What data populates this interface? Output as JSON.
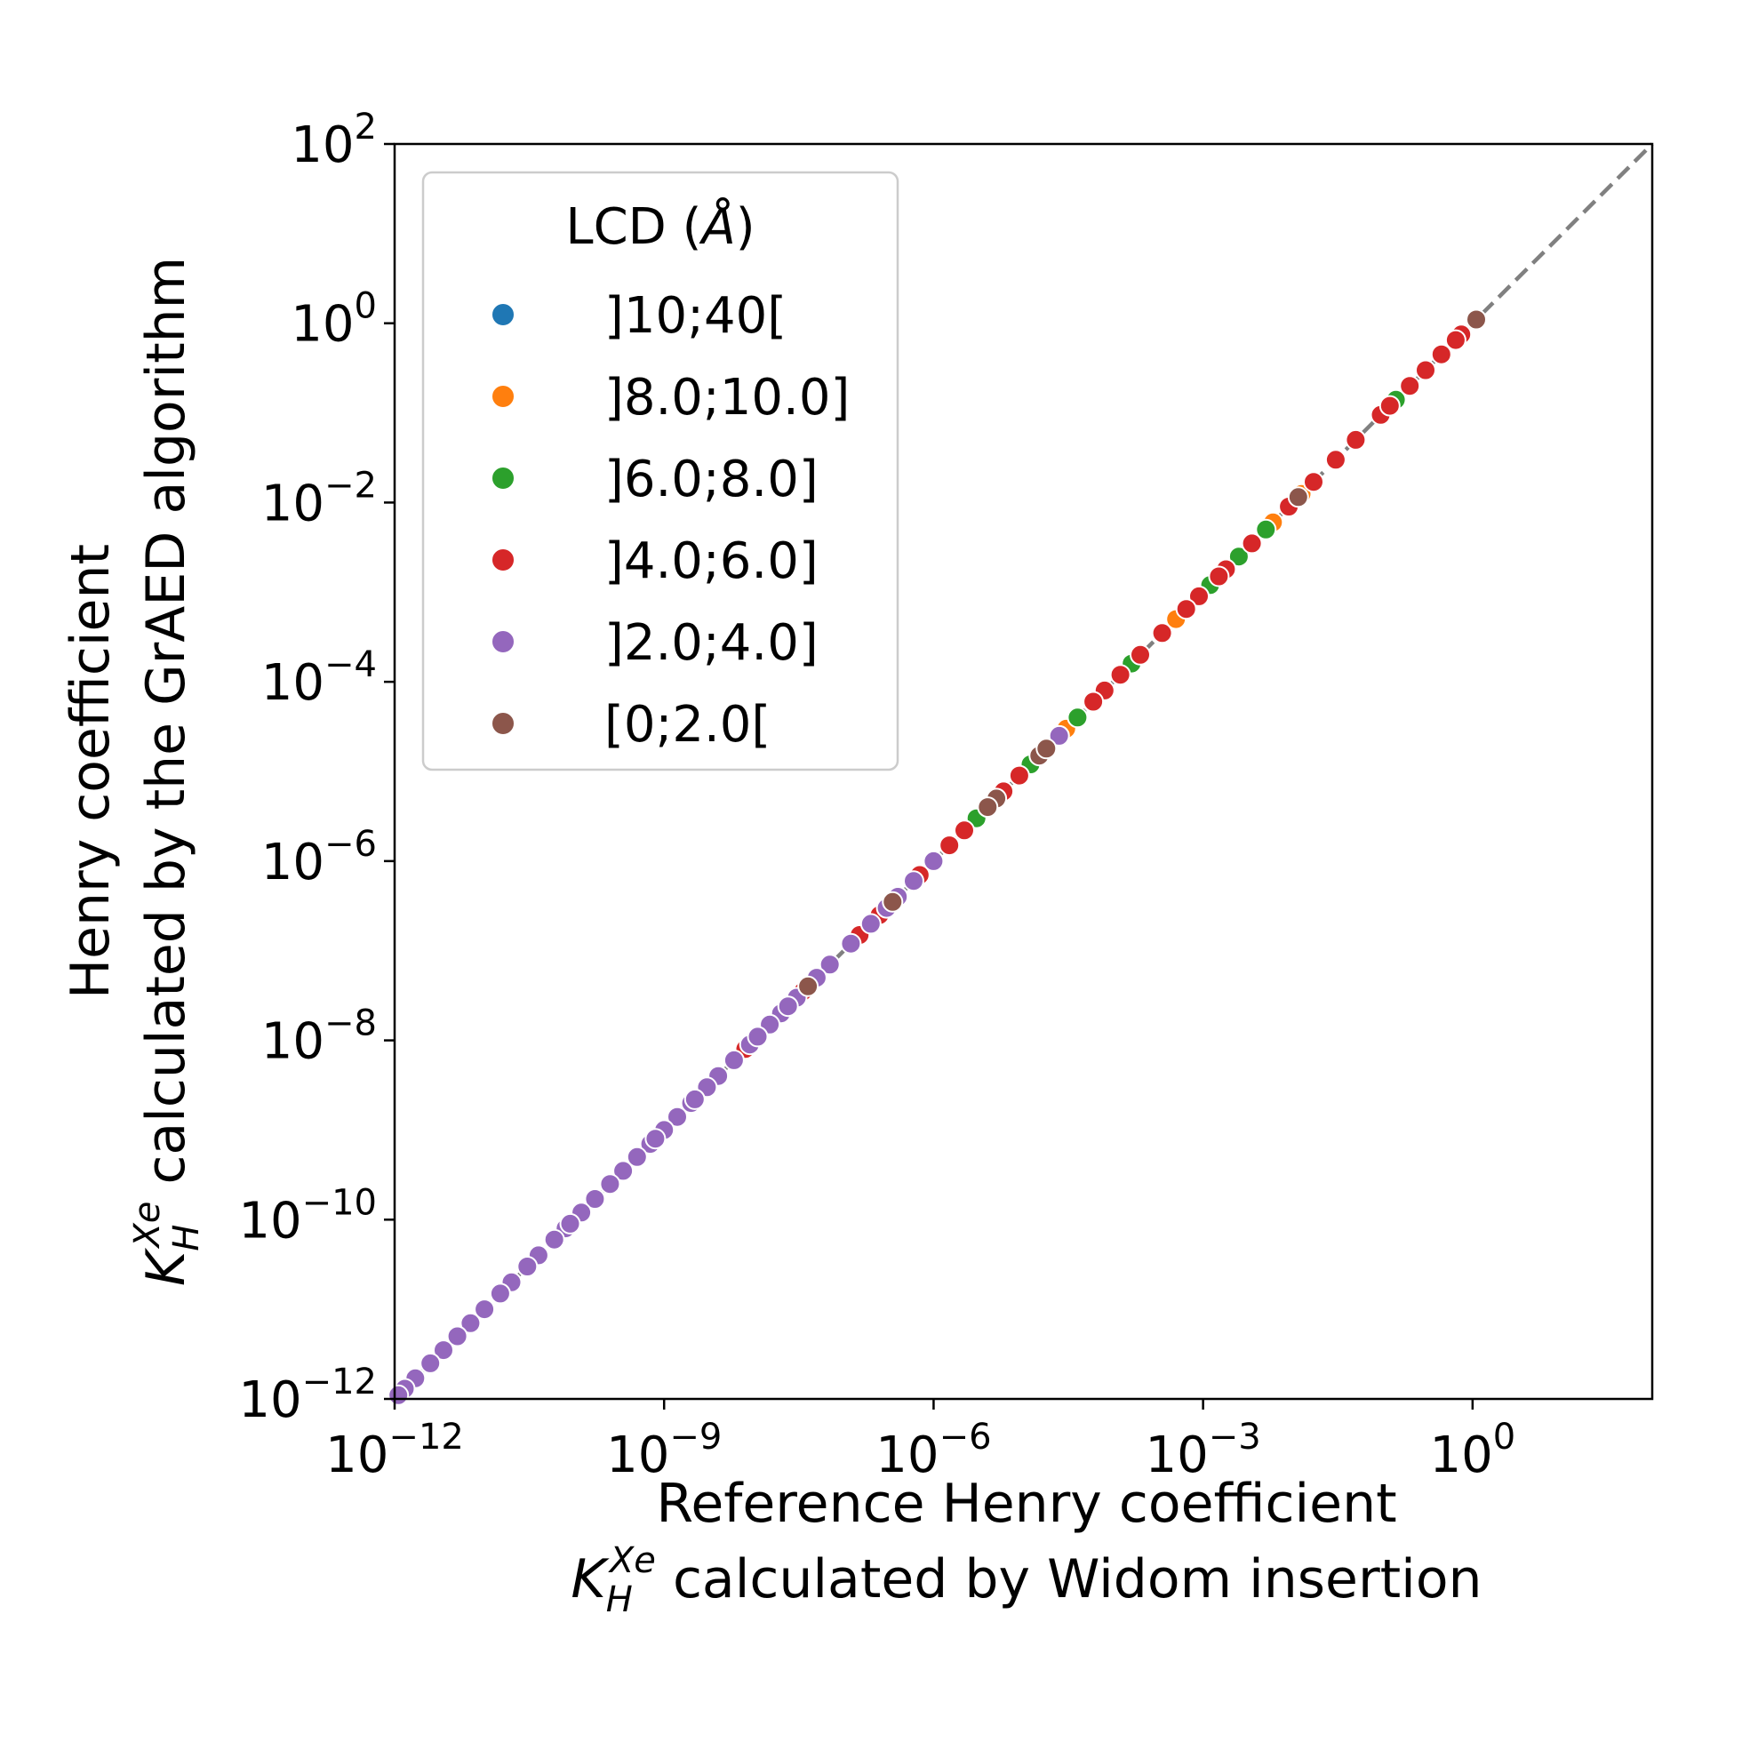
{
  "chart_data": {
    "type": "scatter",
    "xscale": "log",
    "yscale": "log",
    "xlim": [
      1e-12,
      100.0
    ],
    "ylim": [
      1e-12,
      100.0
    ],
    "x_ticks": [
      {
        "base": "10",
        "exp": "−12"
      },
      {
        "base": "10",
        "exp": "−9"
      },
      {
        "base": "10",
        "exp": "−6"
      },
      {
        "base": "10",
        "exp": "−3"
      },
      {
        "base": "10",
        "exp": "0"
      }
    ],
    "x_tick_values": [
      1e-12,
      1e-09,
      1e-06,
      0.001,
      1
    ],
    "y_ticks": [
      {
        "base": "10",
        "exp": "−12"
      },
      {
        "base": "10",
        "exp": "−10"
      },
      {
        "base": "10",
        "exp": "−8"
      },
      {
        "base": "10",
        "exp": "−6"
      },
      {
        "base": "10",
        "exp": "−4"
      },
      {
        "base": "10",
        "exp": "−2"
      },
      {
        "base": "10",
        "exp": "0"
      },
      {
        "base": "10",
        "exp": "2"
      }
    ],
    "y_tick_values": [
      1e-12,
      1e-10,
      1e-08,
      1e-06,
      0.0001,
      0.01,
      1,
      100
    ],
    "xlabel": {
      "line1": "Reference Henry coefficient",
      "sym": "K",
      "sub": "H",
      "sup": "Xe",
      "rest": " calculated by Widom insertion"
    },
    "ylabel": {
      "line1": "Henry coefficient",
      "sym": "K",
      "sub": "H",
      "sup": "Xe",
      "rest": " calculated by the GrAED algorithm"
    },
    "legend": {
      "title_prefix": "LCD (",
      "title_unit": "Å",
      "title_suffix": ")",
      "placement": "upper-left"
    },
    "diagonal": {
      "style": "dashed",
      "color": "#808080"
    },
    "grid": false,
    "series": [
      {
        "name": "]10;40[",
        "color": "#1f77b4",
        "points": []
      },
      {
        "name": "]8.0;10.0]",
        "color": "#ff7f0e",
        "points": [
          [
            0.006,
            0.006
          ],
          [
            3e-05,
            3e-05
          ],
          [
            0.0125,
            0.0125
          ],
          [
            0.0005,
            0.0005
          ]
        ]
      },
      {
        "name": "]6.0;8.0]",
        "color": "#2ca02c",
        "points": [
          [
            0.14,
            0.14
          ],
          [
            0.005,
            0.005
          ],
          [
            0.0012,
            0.0012
          ],
          [
            0.00016,
            0.00016
          ],
          [
            4e-05,
            4e-05
          ],
          [
            1.2e-05,
            1.2e-05
          ],
          [
            3e-06,
            3e-06
          ],
          [
            0.1,
            0.1
          ],
          [
            0.0025,
            0.0025
          ]
        ]
      },
      {
        "name": "]4.0;6.0]",
        "color": "#d62728",
        "points": [
          [
            0.75,
            0.75
          ],
          [
            0.65,
            0.65
          ],
          [
            0.3,
            0.3
          ],
          [
            0.2,
            0.2
          ],
          [
            0.095,
            0.095
          ],
          [
            0.05,
            0.05
          ],
          [
            0.03,
            0.03
          ],
          [
            0.017,
            0.017
          ],
          [
            0.009,
            0.009
          ],
          [
            0.0035,
            0.0035
          ],
          [
            0.0018,
            0.0018
          ],
          [
            0.0009,
            0.0009
          ],
          [
            0.00065,
            0.00065
          ],
          [
            0.00035,
            0.00035
          ],
          [
            0.0002,
            0.0002
          ],
          [
            0.00012,
            0.00012
          ],
          [
            8e-05,
            8e-05
          ],
          [
            6e-05,
            6e-05
          ],
          [
            2.5e-05,
            2.5e-05
          ],
          [
            9e-06,
            9e-06
          ],
          [
            6e-06,
            6e-06
          ],
          [
            2.2e-06,
            2.2e-06
          ],
          [
            1.5e-06,
            1.5e-06
          ],
          [
            1e-06,
            1e-06
          ],
          [
            7e-07,
            7e-07
          ],
          [
            4e-07,
            4e-07
          ],
          [
            2.5e-07,
            2.5e-07
          ],
          [
            1.5e-07,
            1.5e-07
          ],
          [
            5e-08,
            5e-08
          ],
          [
            3.5e-08,
            3.5e-08
          ],
          [
            8e-09,
            8e-09
          ],
          [
            0.45,
            0.45
          ],
          [
            0.12,
            0.12
          ],
          [
            0.0015,
            0.0015
          ]
        ]
      },
      {
        "name": "]2.0;4.0]",
        "color": "#9467bd",
        "points": [
          [
            2.5e-05,
            2.5e-05
          ],
          [
            1e-06,
            1e-06
          ],
          [
            6e-07,
            6e-07
          ],
          [
            4e-07,
            4e-07
          ],
          [
            3e-07,
            3e-07
          ],
          [
            2e-07,
            2e-07
          ],
          [
            1.2e-07,
            1.2e-07
          ],
          [
            7e-08,
            7e-08
          ],
          [
            5e-08,
            5e-08
          ],
          [
            3e-08,
            3e-08
          ],
          [
            2e-08,
            2e-08
          ],
          [
            1.5e-08,
            1.5e-08
          ],
          [
            9e-09,
            9e-09
          ],
          [
            6e-09,
            6e-09
          ],
          [
            4e-09,
            4e-09
          ],
          [
            3e-09,
            3e-09
          ],
          [
            2e-09,
            2e-09
          ],
          [
            1.4e-09,
            1.4e-09
          ],
          [
            1e-09,
            1e-09
          ],
          [
            7e-10,
            7e-10
          ],
          [
            5e-10,
            5e-10
          ],
          [
            3.5e-10,
            3.5e-10
          ],
          [
            2.5e-10,
            2.5e-10
          ],
          [
            1.7e-10,
            1.7e-10
          ],
          [
            1.2e-10,
            1.2e-10
          ],
          [
            8e-11,
            8e-11
          ],
          [
            6e-11,
            6e-11
          ],
          [
            4e-11,
            4e-11
          ],
          [
            3e-11,
            3e-11
          ],
          [
            2e-11,
            2e-11
          ],
          [
            1.5e-11,
            1.5e-11
          ],
          [
            1e-11,
            1e-11
          ],
          [
            7e-12,
            7e-12
          ],
          [
            5e-12,
            5e-12
          ],
          [
            3.5e-12,
            3.5e-12
          ],
          [
            2.5e-12,
            2.5e-12
          ],
          [
            1.7e-12,
            1.7e-12
          ],
          [
            1.3e-12,
            1.3e-12
          ],
          [
            1.1e-12,
            1.1e-12
          ],
          [
            2.2e-09,
            2.2e-09
          ],
          [
            8e-10,
            8e-10
          ],
          [
            9e-11,
            9e-11
          ],
          [
            1.1e-08,
            1.1e-08
          ],
          [
            2.4e-08,
            2.4e-08
          ]
        ]
      },
      {
        "name": "[0;2.0[",
        "color": "#8c564b",
        "points": [
          [
            1.1,
            1.1
          ],
          [
            0.0115,
            0.0115
          ],
          [
            1.5e-05,
            1.5e-05
          ],
          [
            5e-06,
            5e-06
          ],
          [
            4e-06,
            4e-06
          ],
          [
            3.5e-07,
            3.5e-07
          ],
          [
            4e-08,
            4e-08
          ],
          [
            1.8e-05,
            1.8e-05
          ]
        ]
      }
    ]
  }
}
